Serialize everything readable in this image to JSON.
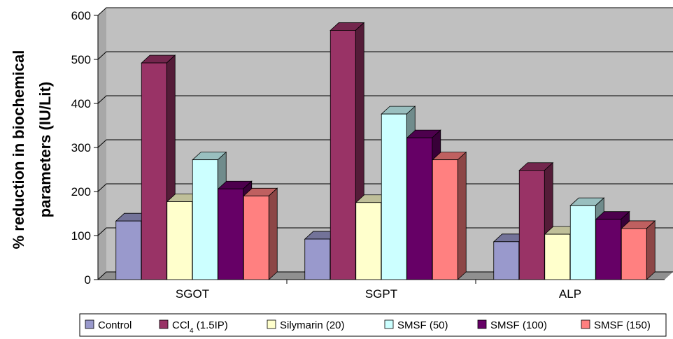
{
  "chart_data": {
    "type": "bar",
    "categories": [
      "SGOT",
      "SGPT",
      "ALP"
    ],
    "series": [
      {
        "name": "Control",
        "legend_main": "Control",
        "legend_sub": "",
        "legend_tail": "",
        "color": "#9999cc",
        "values": [
          133,
          92,
          86
        ]
      },
      {
        "name": "CCl4 (1.5IP)",
        "legend_main": "CCl",
        "legend_sub": "4",
        "legend_tail": " (1.5IP)",
        "color": "#993366",
        "values": [
          492,
          566,
          248
        ]
      },
      {
        "name": "Silymarin (20)",
        "legend_main": "Silymarin (20)",
        "legend_sub": "",
        "legend_tail": "",
        "color": "#ffffcc",
        "values": [
          177,
          175,
          103
        ]
      },
      {
        "name": "SMSF (50)",
        "legend_main": "SMSF (50)",
        "legend_sub": "",
        "legend_tail": "",
        "color": "#ccffff",
        "values": [
          272,
          376,
          168
        ]
      },
      {
        "name": "SMSF (100)",
        "legend_main": "SMSF (100)",
        "legend_sub": "",
        "legend_tail": "",
        "color": "#660066",
        "values": [
          206,
          322,
          137
        ]
      },
      {
        "name": "SMSF (150)",
        "legend_main": "SMSF (150)",
        "legend_sub": "",
        "legend_tail": "",
        "color": "#ff8080",
        "values": [
          190,
          272,
          116
        ]
      }
    ],
    "ylabel_line1": "% reduction in biochemical",
    "ylabel_line2": "parameters (IU/Lit)",
    "yticks": [
      "0",
      "100",
      "200",
      "300",
      "400",
      "500",
      "600"
    ],
    "ylim": [
      0,
      600
    ],
    "grid": true,
    "legend_position": "bottom",
    "plot_background": "#c0c0c0"
  }
}
